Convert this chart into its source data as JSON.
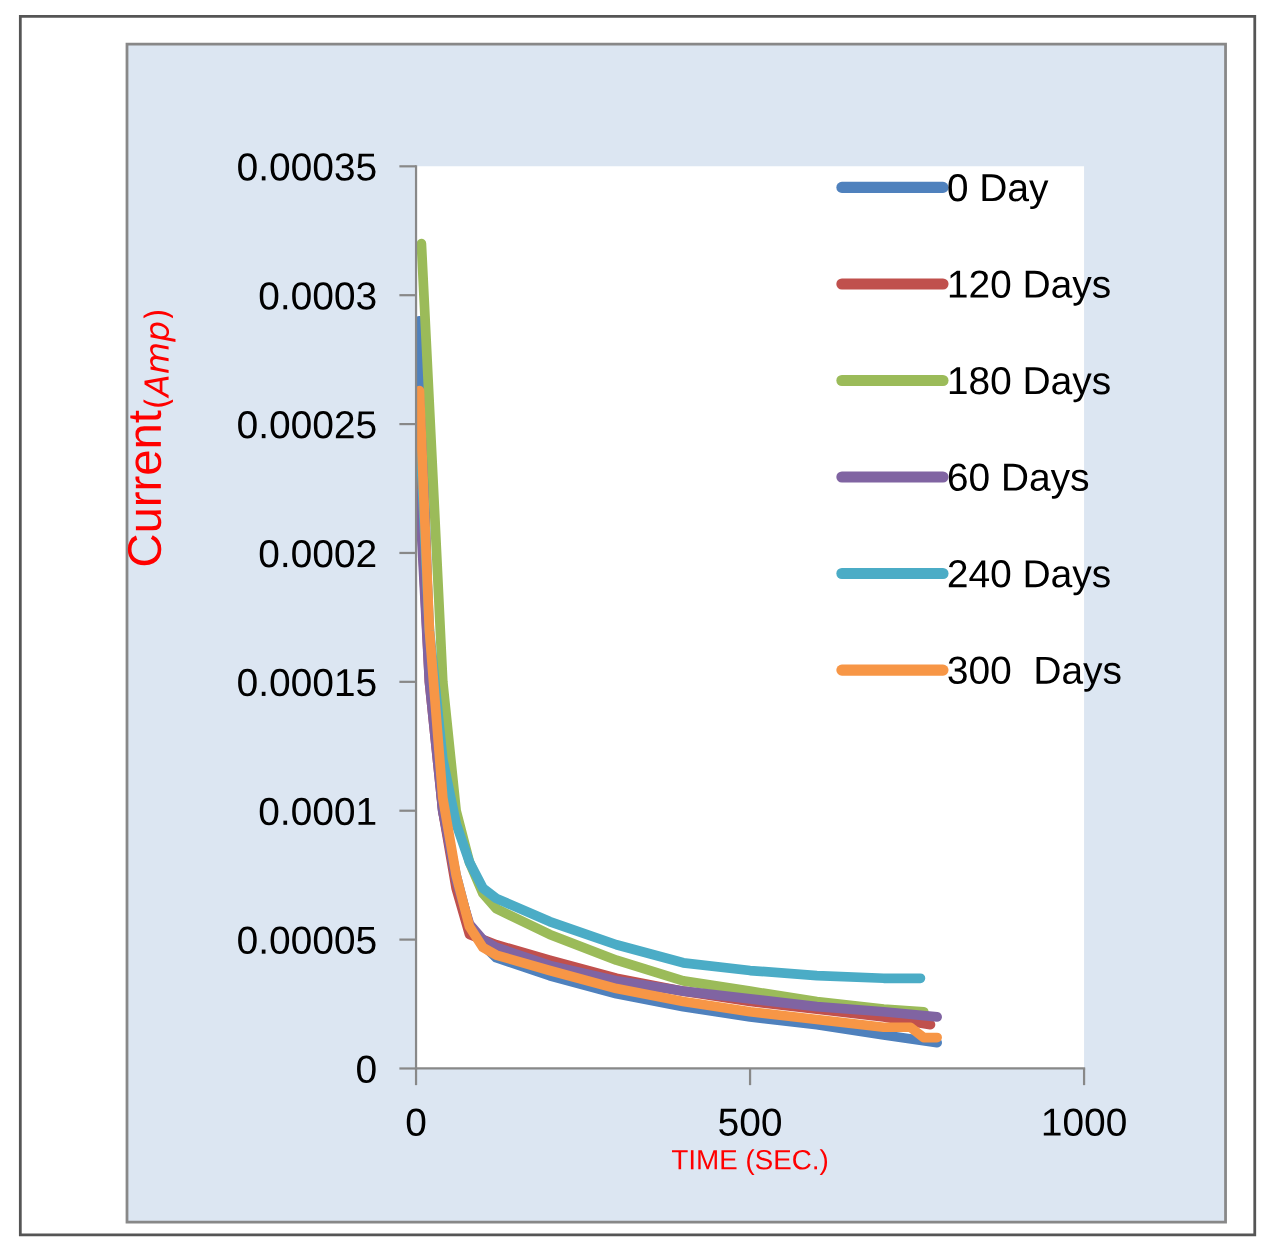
{
  "chart_data": {
    "type": "line",
    "xlabel": "TIME (SEC.)",
    "ylabel": "Current$_{(Amp)}$",
    "xlim": [
      0,
      1000
    ],
    "xticks": [
      0,
      500,
      1000
    ],
    "ylim": [
      0,
      0.00035
    ],
    "yticks": [
      {
        "value": 0,
        "label": "0"
      },
      {
        "value": 5e-05,
        "label": "0.00005"
      },
      {
        "value": 0.0001,
        "label": "0.0001"
      },
      {
        "value": 0.00015,
        "label": "0.00015"
      },
      {
        "value": 0.0002,
        "label": "0.0002"
      },
      {
        "value": 0.00025,
        "label": "0.00025"
      },
      {
        "value": 0.0003,
        "label": "0.0003"
      },
      {
        "value": 0.00035,
        "label": "0.00035"
      }
    ],
    "grid": false,
    "legend": "right",
    "marker": "none",
    "line_style": "solid",
    "series": [
      {
        "name": "0 Day",
        "color": "#4f81bd",
        "x": [
          5,
          20,
          40,
          60,
          80,
          100,
          120,
          200,
          300,
          400,
          500,
          600,
          700,
          780
        ],
        "values": [
          0.00029,
          0.00016,
          0.0001,
          7.5e-05,
          5.5e-05,
          4.8e-05,
          4.3e-05,
          3.6e-05,
          2.9e-05,
          2.4e-05,
          2e-05,
          1.7e-05,
          1.3e-05,
          1e-05
        ]
      },
      {
        "name": "120 Days",
        "color": "#c0504d",
        "x": [
          5,
          20,
          40,
          60,
          80,
          100,
          120,
          200,
          300,
          400,
          500,
          600,
          700,
          770
        ],
        "values": [
          0.00023,
          0.00015,
          0.0001,
          7e-05,
          5.2e-05,
          5e-05,
          4.8e-05,
          4.2e-05,
          3.5e-05,
          3e-05,
          2.6e-05,
          2.3e-05,
          2e-05,
          1.7e-05
        ]
      },
      {
        "name": "180 Days",
        "color": "#9bbb59",
        "x": [
          8,
          27,
          40,
          60,
          80,
          100,
          120,
          200,
          300,
          400,
          500,
          600,
          700,
          760
        ],
        "values": [
          0.00032,
          0.00022,
          0.00015,
          0.0001,
          8e-05,
          6.8e-05,
          6.2e-05,
          5.2e-05,
          4.2e-05,
          3.4e-05,
          3e-05,
          2.6e-05,
          2.3e-05,
          2.2e-05
        ]
      },
      {
        "name": "60 Days",
        "color": "#8064a2",
        "x": [
          5,
          20,
          40,
          60,
          80,
          100,
          120,
          200,
          300,
          400,
          500,
          600,
          700,
          780
        ],
        "values": [
          0.000223,
          0.00015,
          0.0001,
          7.3e-05,
          5.6e-05,
          5e-05,
          4.7e-05,
          4e-05,
          3.4e-05,
          3e-05,
          2.7e-05,
          2.4e-05,
          2.2e-05,
          2e-05
        ]
      },
      {
        "name": "240 Days",
        "color": "#4bacc6",
        "x": [
          5,
          20,
          40,
          60,
          80,
          100,
          120,
          200,
          300,
          400,
          500,
          600,
          700,
          755
        ],
        "values": [
          0.00025,
          0.00017,
          0.00012,
          9.5e-05,
          8e-05,
          7e-05,
          6.6e-05,
          5.7e-05,
          4.8e-05,
          4.1e-05,
          3.8e-05,
          3.6e-05,
          3.5e-05,
          3.5e-05
        ]
      },
      {
        "name": "300  Days",
        "color": "#f79646",
        "x": [
          5,
          20,
          40,
          60,
          80,
          100,
          120,
          200,
          300,
          400,
          500,
          600,
          700,
          740,
          760,
          780
        ],
        "values": [
          0.000263,
          0.00017,
          0.000105,
          7.5e-05,
          5.5e-05,
          4.7e-05,
          4.4e-05,
          3.8e-05,
          3.1e-05,
          2.6e-05,
          2.2e-05,
          1.9e-05,
          1.6e-05,
          1.6e-05,
          1.2e-05,
          1.2e-05
        ]
      }
    ]
  }
}
